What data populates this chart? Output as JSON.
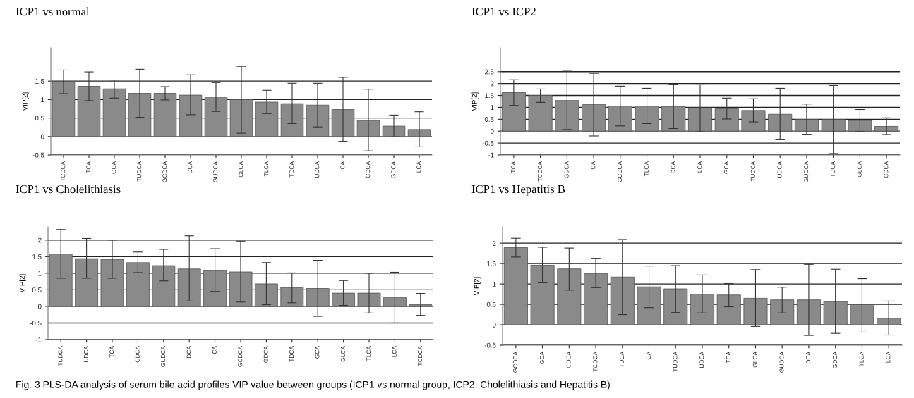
{
  "chart_data": [
    {
      "type": "bar",
      "title": "ICP1 vs normal",
      "ylabel": "VIP[2]",
      "grid": "y",
      "ylim": [
        -0.5,
        2.4
      ],
      "yticks": [
        -0.5,
        0,
        0.5,
        1,
        1.5
      ],
      "categories": [
        "TCDCA",
        "TCA",
        "GCA",
        "TUDCA",
        "GCDCA",
        "DCA",
        "GUDCA",
        "GLCA",
        "TLCA",
        "TDCA",
        "UDCA",
        "CA",
        "CDCA",
        "GDCA",
        "LCA"
      ],
      "series": [
        {
          "color": "#8a8a8a",
          "values": [
            1.48,
            1.36,
            1.29,
            1.17,
            1.17,
            1.12,
            1.07,
            1.0,
            0.93,
            0.89,
            0.85,
            0.73,
            0.43,
            0.28,
            0.19
          ],
          "errors": [
            [
              1.16,
              1.8
            ],
            [
              0.97,
              1.75
            ],
            [
              1.04,
              1.53
            ],
            [
              0.52,
              1.82
            ],
            [
              0.99,
              1.35
            ],
            [
              0.59,
              1.67
            ],
            [
              0.68,
              1.46
            ],
            [
              0.09,
              1.9
            ],
            [
              0.62,
              1.25
            ],
            [
              0.35,
              1.44
            ],
            [
              0.26,
              1.44
            ],
            [
              -0.13,
              1.6
            ],
            [
              -0.39,
              1.28
            ],
            [
              -0.01,
              0.58
            ],
            [
              -0.28,
              0.67
            ]
          ]
        }
      ],
      "annotations": [
        "Fig. 3 PLS-DA analysis of serum bile acid profiles VIP value between groups (ICP1 vs normal group, ICP2, Cholelithiasis and Hepatitis B)"
      ]
    },
    {
      "type": "bar",
      "title": "ICP1 vs ICP2",
      "ylabel": "VIP[2]",
      "grid": "y",
      "ylim": [
        -1,
        3.5
      ],
      "yticks": [
        -1,
        -0.5,
        0,
        0.5,
        1,
        1.5,
        2,
        2.5
      ],
      "categories": [
        "TCA",
        "TCDCA",
        "GDCA",
        "CA",
        "GCDCA",
        "TLCA",
        "DCA",
        "LCA",
        "GCA",
        "TUDCA",
        "UDCA",
        "GUDCA",
        "TDCA",
        "GLCA",
        "CDCA"
      ],
      "series": [
        {
          "color": "#8a8a8a",
          "values": [
            1.62,
            1.5,
            1.29,
            1.12,
            1.05,
            1.05,
            1.04,
            0.98,
            0.94,
            0.87,
            0.71,
            0.49,
            0.49,
            0.45,
            0.2
          ],
          "errors": [
            [
              1.08,
              2.16
            ],
            [
              1.21,
              1.77
            ],
            [
              0.07,
              2.52
            ],
            [
              -0.2,
              2.43
            ],
            [
              0.22,
              1.89
            ],
            [
              0.32,
              1.8
            ],
            [
              0.11,
              1.98
            ],
            [
              -0.03,
              1.95
            ],
            [
              0.51,
              1.39
            ],
            [
              0.39,
              1.36
            ],
            [
              -0.36,
              1.8
            ],
            [
              -0.13,
              1.14
            ],
            [
              -0.94,
              1.92
            ],
            [
              -0.02,
              0.91
            ],
            [
              -0.14,
              0.56
            ]
          ]
        }
      ]
    },
    {
      "type": "bar",
      "title": "ICP1 vs Cholelithiasis",
      "ylabel": "VIP[2]",
      "grid": "y",
      "ylim": [
        -1,
        2.4
      ],
      "yticks": [
        -1,
        -0.5,
        0,
        0.5,
        1,
        1.5,
        2
      ],
      "categories": [
        "TUDCA",
        "UDCA",
        "TCA",
        "CDCA",
        "GUDCA",
        "DCA",
        "CA",
        "GCDCA",
        "GDCA",
        "TDCA",
        "GCA",
        "GLCA",
        "TLCA",
        "LCA",
        "TCDCA"
      ],
      "series": [
        {
          "color": "#8a8a8a",
          "values": [
            1.58,
            1.44,
            1.42,
            1.32,
            1.23,
            1.13,
            1.08,
            1.04,
            0.68,
            0.57,
            0.54,
            0.4,
            0.4,
            0.27,
            0.05
          ],
          "errors": [
            [
              0.85,
              2.32
            ],
            [
              0.85,
              2.05
            ],
            [
              0.85,
              2.0
            ],
            [
              1.02,
              1.64
            ],
            [
              0.77,
              1.72
            ],
            [
              0.16,
              2.13
            ],
            [
              0.45,
              1.74
            ],
            [
              0.13,
              1.97
            ],
            [
              0.05,
              1.32
            ],
            [
              0.11,
              1.01
            ],
            [
              -0.3,
              1.39
            ],
            [
              0.03,
              0.78
            ],
            [
              -0.2,
              1.0
            ],
            [
              -0.5,
              1.03
            ],
            [
              -0.27,
              0.39
            ]
          ]
        }
      ]
    },
    {
      "type": "bar",
      "title": "ICP1 vs Hepatitis B",
      "ylabel": "VIP[2]",
      "grid": "y",
      "ylim": [
        -0.5,
        2.4
      ],
      "yticks": [
        -0.5,
        0,
        0.5,
        1,
        1.5,
        2
      ],
      "categories": [
        "GCDCA",
        "GCA",
        "CDCA",
        "TCDCA",
        "TDCA",
        "CA",
        "TUDCA",
        "UDCA",
        "TCA",
        "GLCA",
        "GUDCA",
        "DCA",
        "GDCA",
        "TLCA",
        "LCA"
      ],
      "series": [
        {
          "color": "#8a8a8a",
          "values": [
            1.89,
            1.46,
            1.37,
            1.26,
            1.17,
            0.93,
            0.88,
            0.75,
            0.73,
            0.65,
            0.61,
            0.61,
            0.57,
            0.47,
            0.16
          ],
          "errors": [
            [
              1.66,
              2.12
            ],
            [
              1.03,
              1.9
            ],
            [
              0.85,
              1.88
            ],
            [
              0.91,
              1.63
            ],
            [
              0.25,
              2.09
            ],
            [
              0.42,
              1.44
            ],
            [
              0.3,
              1.45
            ],
            [
              0.29,
              1.22
            ],
            [
              0.44,
              1.01
            ],
            [
              -0.04,
              1.35
            ],
            [
              0.29,
              0.92
            ],
            [
              -0.26,
              1.48
            ],
            [
              -0.21,
              1.36
            ],
            [
              -0.18,
              1.13
            ],
            [
              -0.25,
              0.58
            ]
          ]
        }
      ]
    }
  ]
}
